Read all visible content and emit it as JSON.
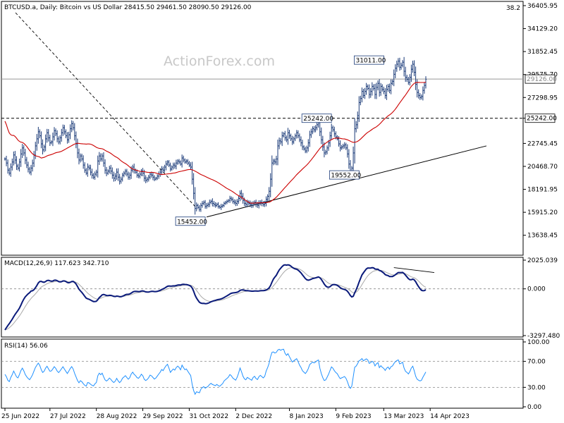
{
  "header": {
    "symbol_text": "BTCUSD.a, Daily:  Bitcoin vs US Dollar  28415.50 29461.50 28090.50 29126.00",
    "corner_value": "38.2"
  },
  "watermark": "ActionForex.com",
  "chart_data": [
    {
      "type": "candlestick",
      "panel": "price",
      "y_ticks": [
        "36405.95",
        "34129.20",
        "31852.45",
        "29575.70",
        "27298.95",
        "25242.00",
        "22745.45",
        "20468.70",
        "18191.95",
        "15915.20",
        "13638.45"
      ],
      "y_range": [
        11800,
        36405.95
      ],
      "current_price_label": "29126.00",
      "support_level_label": "25242.00",
      "annotations": [
        {
          "text": "31011.00",
          "date_index": 264,
          "value": 31011
        },
        {
          "text": "25242.00",
          "date_index": 225,
          "value": 25242
        },
        {
          "text": "19552.00",
          "date_index": 245,
          "value": 19552
        },
        {
          "text": "15452.00",
          "date_index": 138,
          "value": 15452
        }
      ],
      "series": [
        {
          "name": "price",
          "style": "bars",
          "color": "#1a3a78"
        },
        {
          "name": "moving-average",
          "color": "#cc0000"
        }
      ],
      "close": [
        21200,
        20800,
        20100,
        19800,
        20400,
        20900,
        21600,
        21100,
        20500,
        20300,
        20900,
        21700,
        22300,
        21800,
        21100,
        20600,
        20200,
        19900,
        20300,
        20800,
        21600,
        22500,
        23200,
        23900,
        23500,
        22700,
        22100,
        22400,
        23200,
        23800,
        23300,
        22800,
        22900,
        23400,
        24000,
        23700,
        23200,
        22900,
        23300,
        23800,
        24300,
        23900,
        23500,
        23100,
        23600,
        24200,
        24700,
        24300,
        23500,
        22700,
        21800,
        21100,
        21500,
        21200,
        20600,
        20100,
        19800,
        20400,
        20300,
        19900,
        19600,
        19400,
        19700,
        19900,
        21000,
        21500,
        21200,
        21500,
        20800,
        20100,
        19800,
        20000,
        20300,
        20000,
        19600,
        19300,
        19500,
        19900,
        19400,
        19000,
        19200,
        19600,
        19800,
        20000,
        19700,
        19400,
        19600,
        20100,
        20400,
        20100,
        19900,
        19600,
        19500,
        19700,
        20000,
        19800,
        19300,
        19100,
        19200,
        19400,
        19700,
        19600,
        19400,
        19200,
        19300,
        19500,
        19700,
        19900,
        20200,
        20100,
        20400,
        20700,
        20900,
        20600,
        20200,
        20400,
        20600,
        20500,
        20800,
        21000,
        20900,
        20700,
        21300,
        21100,
        20900,
        21000,
        20800,
        20600,
        20400,
        19200,
        17800,
        16300,
        16600,
        16400,
        16200,
        16600,
        16800,
        16900,
        16500,
        16600,
        16700,
        16900,
        17000,
        16800,
        16700,
        16600,
        16700,
        16500,
        16400,
        16500,
        16600,
        16800,
        16900,
        17000,
        17100,
        17300,
        17200,
        17000,
        16900,
        16800,
        17000,
        17300,
        17800,
        17500,
        17100,
        16800,
        16700,
        16900,
        16800,
        16700,
        16600,
        16800,
        16900,
        16700,
        16600,
        16800,
        16900,
        16800,
        16700,
        16800,
        17200,
        17500,
        18000,
        19200,
        20800,
        21000,
        20900,
        21200,
        22500,
        23000,
        22900,
        23500,
        23700,
        23300,
        23100,
        23800,
        23500,
        23200,
        22900,
        23200,
        23500,
        23800,
        23500,
        23100,
        22800,
        22400,
        22200,
        22000,
        22300,
        22800,
        23600,
        23900,
        24200,
        24100,
        24300,
        24600,
        24800,
        23900,
        23100,
        22400,
        21800,
        21900,
        22300,
        22800,
        23500,
        24300,
        24100,
        23700,
        23400,
        23200,
        22700,
        22300,
        22400,
        22500,
        22600,
        22300,
        21700,
        20700,
        20000,
        20300,
        21800,
        24200,
        24600,
        25500,
        26800,
        27200,
        27900,
        27500,
        27900,
        28400,
        28200,
        27600,
        27900,
        28400,
        28200,
        27600,
        28300,
        28700,
        27800,
        28400,
        28100,
        27900,
        27500,
        28100,
        28400,
        28000,
        28700,
        28900,
        29600,
        30200,
        30600,
        30900,
        30300,
        30500,
        30800,
        29900,
        29300,
        29100,
        28800,
        29300,
        30100,
        30600,
        29800,
        28600,
        27800,
        27500,
        27300,
        27400,
        28000,
        28500,
        29100
      ]
    },
    {
      "type": "line",
      "panel": "macd",
      "title": "MACD(12,26,9) 117.623 342.710",
      "y_ticks": [
        "2025.039",
        "0.000",
        "-3297.480"
      ],
      "y_range": [
        -3297.48,
        2025.039
      ],
      "series": [
        {
          "name": "macd",
          "color": "#0a1a7a"
        },
        {
          "name": "signal",
          "color": "#aaaaaa"
        }
      ]
    },
    {
      "type": "line",
      "panel": "rsi",
      "title": "RSI(14) 56.06",
      "y_ticks": [
        "100.00",
        "70.00",
        "30.00",
        "0.00"
      ],
      "y_range": [
        0,
        100
      ],
      "levels": [
        70,
        30
      ],
      "series": [
        {
          "name": "rsi",
          "color": "#1e90ff"
        }
      ]
    }
  ],
  "x_axis": {
    "tick_labels": [
      {
        "label": "25 Jun 2022",
        "date_index": 0
      },
      {
        "label": "27 Jul 2022",
        "date_index": 31
      },
      {
        "label": "28 Aug 2022",
        "date_index": 63
      },
      {
        "label": "29 Sep 2022",
        "date_index": 95
      },
      {
        "label": "31 Oct 2022",
        "date_index": 127
      },
      {
        "label": "2 Dec 2022",
        "date_index": 159
      },
      {
        "label": "8 Jan 2023",
        "date_index": 196
      },
      {
        "label": "9 Feb 2023",
        "date_index": 228
      },
      {
        "label": "13 Mar 2023",
        "date_index": 261
      },
      {
        "label": "14 Apr 2023",
        "date_index": 293
      }
    ]
  },
  "colors": {
    "bars": "#1a3a78",
    "ma": "#cc0000",
    "macd": "#0a1a7a",
    "signal": "#aaaaaa",
    "rsi": "#1e90ff",
    "trendline": "#000000",
    "grid": "#888888"
  }
}
